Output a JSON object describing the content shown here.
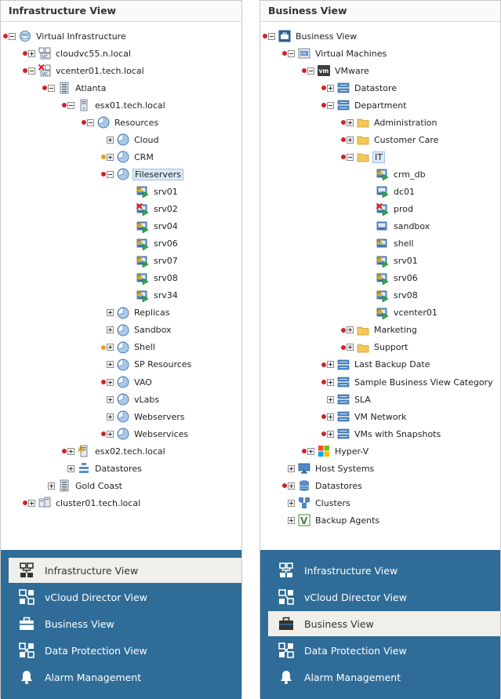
{
  "left": {
    "title": "Infrastructure View",
    "tree": [
      {
        "label": "Virtual Infrastructure",
        "level": 0,
        "alert": "red",
        "exp": "minus",
        "icon": "virtual-infrastructure"
      },
      {
        "label": "cloudvc55.n.local",
        "level": 1,
        "alert": "red",
        "exp": "plus",
        "icon": "vcenter"
      },
      {
        "label": "vcenter01.tech.local",
        "level": 1,
        "alert": "red",
        "exp": "minus",
        "icon": "vcenter-error"
      },
      {
        "label": "Atlanta",
        "level": 2,
        "alert": "red",
        "exp": "minus",
        "icon": "datacenter"
      },
      {
        "label": "esx01.tech.local",
        "level": 3,
        "alert": "red",
        "exp": "minus",
        "icon": "host"
      },
      {
        "label": "Resources",
        "level": 4,
        "alert": "red",
        "exp": "minus",
        "icon": "resource-pool"
      },
      {
        "label": "Cloud",
        "level": 5,
        "alert": "none",
        "exp": "plus",
        "icon": "resource-pool"
      },
      {
        "label": "CRM",
        "level": 5,
        "alert": "warn",
        "exp": "plus",
        "icon": "resource-pool"
      },
      {
        "label": "Fileservers",
        "level": 5,
        "alert": "red",
        "exp": "minus",
        "icon": "resource-pool",
        "selected": true
      },
      {
        "label": "srv01",
        "level": 6,
        "alert": "none",
        "exp": "hidden",
        "icon": "vm-warn"
      },
      {
        "label": "srv02",
        "level": 6,
        "alert": "none",
        "exp": "hidden",
        "icon": "vm-error"
      },
      {
        "label": "srv04",
        "level": 6,
        "alert": "none",
        "exp": "hidden",
        "icon": "vm-warn"
      },
      {
        "label": "srv06",
        "level": 6,
        "alert": "none",
        "exp": "hidden",
        "icon": "vm-warn"
      },
      {
        "label": "srv07",
        "level": 6,
        "alert": "none",
        "exp": "hidden",
        "icon": "vm-warn"
      },
      {
        "label": "srv08",
        "level": 6,
        "alert": "none",
        "exp": "hidden",
        "icon": "vm-warn"
      },
      {
        "label": "srv34",
        "level": 6,
        "alert": "none",
        "exp": "hidden",
        "icon": "vm-warn"
      },
      {
        "label": "Replicas",
        "level": 5,
        "alert": "none",
        "exp": "plus",
        "icon": "resource-pool"
      },
      {
        "label": "Sandbox",
        "level": 5,
        "alert": "none",
        "exp": "plus",
        "icon": "resource-pool"
      },
      {
        "label": "Shell",
        "level": 5,
        "alert": "warn",
        "exp": "plus",
        "icon": "resource-pool"
      },
      {
        "label": "SP Resources",
        "level": 5,
        "alert": "none",
        "exp": "plus",
        "icon": "resource-pool"
      },
      {
        "label": "VAO",
        "level": 5,
        "alert": "red",
        "exp": "plus",
        "icon": "resource-pool"
      },
      {
        "label": "vLabs",
        "level": 5,
        "alert": "none",
        "exp": "plus",
        "icon": "resource-pool"
      },
      {
        "label": "Webservers",
        "level": 5,
        "alert": "none",
        "exp": "plus",
        "icon": "resource-pool"
      },
      {
        "label": "Webservices",
        "level": 5,
        "alert": "red",
        "exp": "plus",
        "icon": "resource-pool"
      },
      {
        "label": "esx02.tech.local",
        "level": 3,
        "alert": "red",
        "exp": "plus",
        "icon": "host-warn"
      },
      {
        "label": "Datastores",
        "level": 3,
        "alert": "none",
        "exp": "plus",
        "icon": "datastores"
      },
      {
        "label": "Gold Coast",
        "level": 2,
        "alert": "none",
        "exp": "plus",
        "icon": "datacenter"
      },
      {
        "label": "cluster01.tech.local",
        "level": 1,
        "alert": "red",
        "exp": "plus",
        "icon": "cluster"
      }
    ],
    "nav": {
      "items": [
        {
          "label": "Infrastructure View",
          "icon": "infrastructure-icon"
        },
        {
          "label": "vCloud Director View",
          "icon": "vcloud-icon"
        },
        {
          "label": "Business View",
          "icon": "briefcase-icon"
        },
        {
          "label": "Data Protection View",
          "icon": "data-protection-icon"
        },
        {
          "label": "Alarm Management",
          "icon": "bell-icon"
        }
      ],
      "active": "Infrastructure View"
    }
  },
  "right": {
    "title": "Business View",
    "tree": [
      {
        "label": "Business View",
        "level": 0,
        "alert": "red",
        "exp": "minus",
        "icon": "business-view"
      },
      {
        "label": "Virtual Machines",
        "level": 1,
        "alert": "red",
        "exp": "minus",
        "icon": "vm-folder"
      },
      {
        "label": "VMware",
        "level": 2,
        "alert": "red",
        "exp": "minus",
        "icon": "vmware"
      },
      {
        "label": "Datastore",
        "level": 3,
        "alert": "red",
        "exp": "plus",
        "icon": "category"
      },
      {
        "label": "Department",
        "level": 3,
        "alert": "red",
        "exp": "minus",
        "icon": "category"
      },
      {
        "label": "Administration",
        "level": 4,
        "alert": "red",
        "exp": "plus",
        "icon": "folder"
      },
      {
        "label": "Customer Care",
        "level": 4,
        "alert": "red",
        "exp": "plus",
        "icon": "folder"
      },
      {
        "label": "IT",
        "level": 4,
        "alert": "red",
        "exp": "minus",
        "icon": "folder",
        "selected": true
      },
      {
        "label": "crm_db",
        "level": 5,
        "alert": "none",
        "exp": "hidden",
        "icon": "vm-warn"
      },
      {
        "label": "dc01",
        "level": 5,
        "alert": "none",
        "exp": "hidden",
        "icon": "vm"
      },
      {
        "label": "prod",
        "level": 5,
        "alert": "none",
        "exp": "hidden",
        "icon": "vm-error"
      },
      {
        "label": "sandbox",
        "level": 5,
        "alert": "none",
        "exp": "hidden",
        "icon": "vm-plain"
      },
      {
        "label": "shell",
        "level": 5,
        "alert": "none",
        "exp": "hidden",
        "icon": "vm-warn-plain"
      },
      {
        "label": "srv01",
        "level": 5,
        "alert": "none",
        "exp": "hidden",
        "icon": "vm-warn"
      },
      {
        "label": "srv06",
        "level": 5,
        "alert": "none",
        "exp": "hidden",
        "icon": "vm-warn"
      },
      {
        "label": "srv08",
        "level": 5,
        "alert": "none",
        "exp": "hidden",
        "icon": "vm-warn"
      },
      {
        "label": "vcenter01",
        "level": 5,
        "alert": "none",
        "exp": "hidden",
        "icon": "vm-warn"
      },
      {
        "label": "Marketing",
        "level": 4,
        "alert": "red",
        "exp": "plus",
        "icon": "folder"
      },
      {
        "label": "Support",
        "level": 4,
        "alert": "red",
        "exp": "plus",
        "icon": "folder"
      },
      {
        "label": "Last Backup Date",
        "level": 3,
        "alert": "red",
        "exp": "plus",
        "icon": "category"
      },
      {
        "label": "Sample Business View Category",
        "level": 3,
        "alert": "red",
        "exp": "plus",
        "icon": "category"
      },
      {
        "label": "SLA",
        "level": 3,
        "alert": "none",
        "exp": "plus",
        "icon": "category"
      },
      {
        "label": "VM Network",
        "level": 3,
        "alert": "red",
        "exp": "plus",
        "icon": "category"
      },
      {
        "label": "VMs with Snapshots",
        "level": 3,
        "alert": "red",
        "exp": "plus",
        "icon": "category"
      },
      {
        "label": "Hyper-V",
        "level": 2,
        "alert": "red",
        "exp": "plus",
        "icon": "hyperv"
      },
      {
        "label": "Host Systems",
        "level": 1,
        "alert": "none",
        "exp": "plus",
        "icon": "host-systems"
      },
      {
        "label": "Datastores",
        "level": 1,
        "alert": "red",
        "exp": "plus",
        "icon": "datastores-db"
      },
      {
        "label": "Clusters",
        "level": 1,
        "alert": "none",
        "exp": "plus",
        "icon": "clusters"
      },
      {
        "label": "Backup Agents",
        "level": 1,
        "alert": "none",
        "exp": "plus",
        "icon": "backup-agents"
      }
    ],
    "nav": {
      "items": [
        {
          "label": "Infrastructure View",
          "icon": "infrastructure-icon"
        },
        {
          "label": "vCloud Director View",
          "icon": "vcloud-icon"
        },
        {
          "label": "Business View",
          "icon": "briefcase-icon"
        },
        {
          "label": "Data Protection View",
          "icon": "data-protection-icon"
        },
        {
          "label": "Alarm Management",
          "icon": "bell-icon"
        }
      ],
      "active": "Business View"
    }
  },
  "colors": {
    "nav_bg": "#2f6c98",
    "nav_active_bg": "#f1efe9",
    "alert_red": "#d0232a",
    "alert_warn": "#e6a21a",
    "selection": "#dbe9f9"
  }
}
